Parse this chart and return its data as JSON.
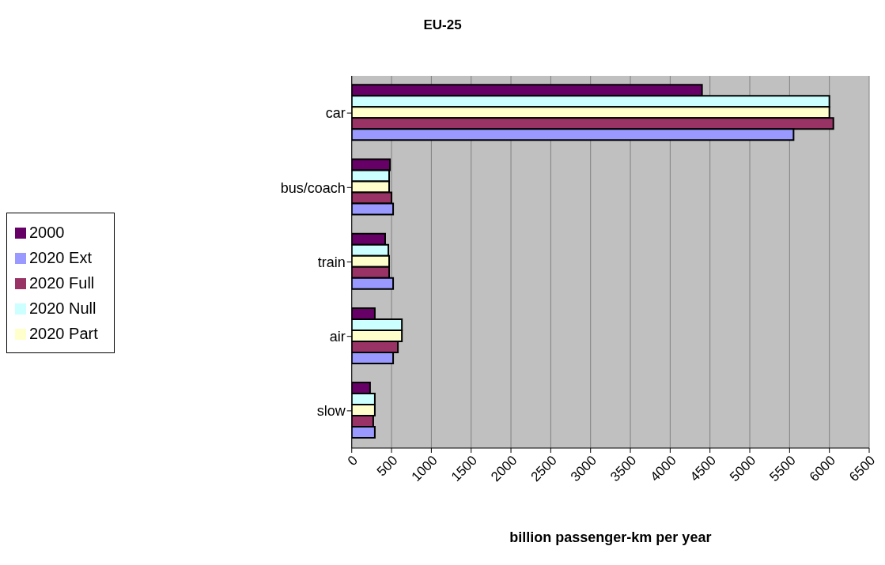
{
  "chart_data": {
    "type": "bar",
    "orientation": "horizontal",
    "title": "EU-25",
    "xlabel": "billion passenger-km per year",
    "categories": [
      "car",
      "bus/coach",
      "train",
      "air",
      "slow"
    ],
    "series": [
      {
        "name": "2000",
        "color": "#660066",
        "values": [
          4400,
          480,
          420,
          290,
          230
        ]
      },
      {
        "name": "2020 Null",
        "color": "#ccffff",
        "values": [
          6000,
          470,
          460,
          630,
          290
        ]
      },
      {
        "name": "2020 Part",
        "color": "#ffffcc",
        "values": [
          6000,
          470,
          470,
          630,
          290
        ]
      },
      {
        "name": "2020 Full",
        "color": "#993366",
        "values": [
          6050,
          500,
          470,
          580,
          270
        ]
      },
      {
        "name": "2020 Ext",
        "color": "#9999ff",
        "values": [
          5550,
          520,
          520,
          520,
          290
        ]
      }
    ],
    "xlim": [
      0,
      6500
    ],
    "xticks": [
      0,
      500,
      1000,
      1500,
      2000,
      2500,
      3000,
      3500,
      4000,
      4500,
      5000,
      5500,
      6000,
      6500
    ],
    "grid": "x",
    "legend": "left"
  }
}
